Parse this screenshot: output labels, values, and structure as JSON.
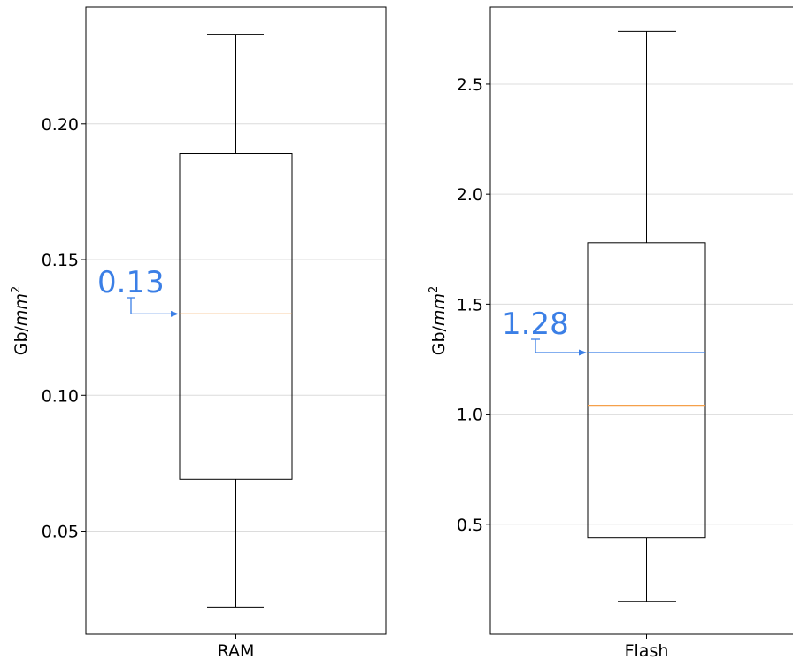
{
  "chart_data": [
    {
      "type": "box",
      "category": "RAM",
      "ylabel_main": "Gb/",
      "ylabel_unit": "mm",
      "ylabel_exp": "2",
      "ylim": [
        0.012,
        0.243
      ],
      "yticks": [
        0.05,
        0.1,
        0.15,
        0.2
      ],
      "ytick_labels": [
        "0.05",
        "0.10",
        "0.15",
        "0.20"
      ],
      "grid": true,
      "box": {
        "whisker_low": 0.022,
        "q1": 0.069,
        "median": 0.13,
        "q3": 0.189,
        "whisker_high": 0.233
      },
      "mean": null,
      "annotation": {
        "text": "0.13",
        "value": 0.13,
        "color": "#3b7fe6"
      },
      "median_color": "#f5a04a",
      "mean_color": "#3b7fe6"
    },
    {
      "type": "box",
      "category": "Flash",
      "ylabel_main": "Gb/",
      "ylabel_unit": "mm",
      "ylabel_exp": "2",
      "ylim": [
        0.0,
        2.85
      ],
      "yticks": [
        0.5,
        1.0,
        1.5,
        2.0,
        2.5
      ],
      "ytick_labels": [
        "0.5",
        "1.0",
        "1.5",
        "2.0",
        "2.5"
      ],
      "grid": true,
      "box": {
        "whisker_low": 0.15,
        "q1": 0.44,
        "median": 1.04,
        "q3": 1.78,
        "whisker_high": 2.74
      },
      "mean": 1.28,
      "annotation": {
        "text": "1.28",
        "value": 1.28,
        "color": "#3b7fe6"
      },
      "median_color": "#f5a04a",
      "mean_color": "#3b7fe6"
    }
  ]
}
